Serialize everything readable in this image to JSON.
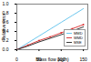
{
  "chart_data": {
    "type": "line",
    "x_label": "Mass flow (kg/h)",
    "y_label": "Relative error",
    "x": [
      0,
      25,
      50,
      75,
      100,
      125,
      150
    ],
    "series": [
      {
        "name": "MMD",
        "color": "#5bc0eb",
        "values": [
          0,
          0.15,
          0.3,
          0.45,
          0.6,
          0.75,
          0.9
        ]
      },
      {
        "name": "WMD",
        "color": "#d62728",
        "marker": "square",
        "values": [
          0,
          0.1,
          0.2,
          0.28,
          0.37,
          0.46,
          0.55
        ]
      },
      {
        "name": "MSE",
        "color": "#222222",
        "values": [
          0,
          0.08,
          0.17,
          0.25,
          0.33,
          0.41,
          0.5
        ]
      }
    ],
    "xlim": [
      0,
      160
    ],
    "xticks": [
      0,
      50,
      100,
      150
    ],
    "ylim": [
      0,
      1
    ],
    "yticks": [
      0,
      0.2,
      0.4,
      0.6,
      0.8,
      1
    ],
    "legend": "lower right"
  }
}
